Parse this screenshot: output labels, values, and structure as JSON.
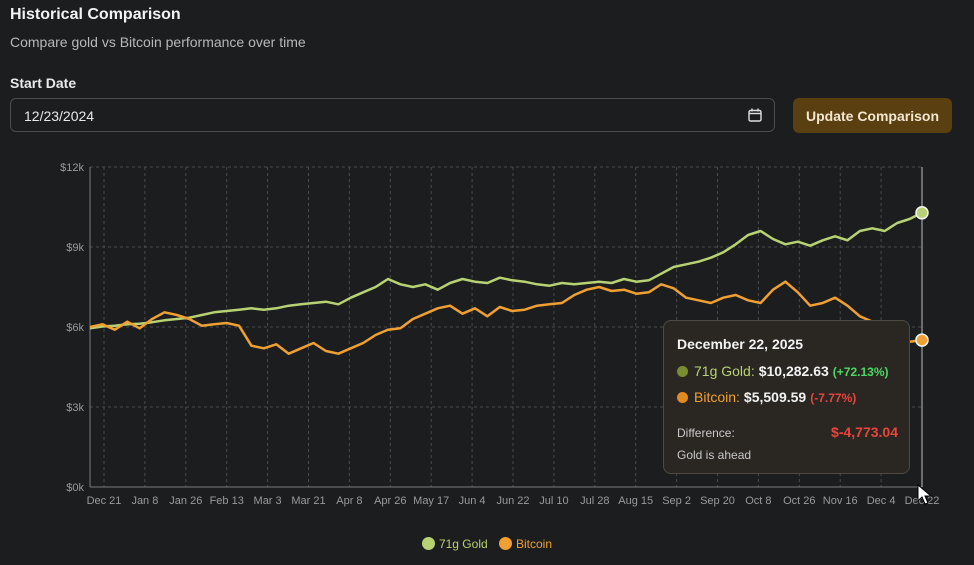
{
  "header": {
    "title": "Historical Comparison",
    "subtitle": "Compare gold vs Bitcoin performance over time"
  },
  "form": {
    "start_label": "Start Date",
    "start_value": "12/23/2024",
    "update_label": "Update Comparison"
  },
  "colors": {
    "gold": "#b8d273",
    "bitcoin": "#f0a032",
    "gold_dot_tooltip": "#7a8c30",
    "bitcoin_dot_tooltip": "#e08a20",
    "positive": "#4cd964",
    "negative": "#e8453c"
  },
  "tooltip": {
    "date": "December 22, 2025",
    "gold_label": "71g Gold:",
    "gold_value": "$10,282.63",
    "gold_change": "(+72.13%)",
    "btc_label": "Bitcoin:",
    "btc_value": "$5,509.59",
    "btc_change": "(-7.77%)",
    "diff_label": "Difference:",
    "diff_value": "$-4,773.04",
    "note": "Gold is ahead"
  },
  "chart_data": {
    "type": "line",
    "title": "",
    "xlabel": "",
    "ylabel": "",
    "ylim": [
      0,
      12000
    ],
    "yticks": [
      0,
      3000,
      6000,
      9000,
      12000
    ],
    "ytick_labels": [
      "$0k",
      "$3k",
      "$6k",
      "$9k",
      "$12k"
    ],
    "xticks": [
      "Dec 21",
      "Jan 8",
      "Jan 26",
      "Feb 13",
      "Mar 3",
      "Mar 21",
      "Apr 8",
      "Apr 26",
      "May 17",
      "Jun 4",
      "Jun 22",
      "Jul 10",
      "Jul 28",
      "Aug 15",
      "Sep 2",
      "Sep 20",
      "Oct 8",
      "Oct 26",
      "Nov 16",
      "Dec 4",
      "Dec 22"
    ],
    "grid": true,
    "legend": "bottom-center",
    "series": [
      {
        "name": "71g Gold",
        "color": "#b8d273",
        "values": [
          5950,
          6020,
          6050,
          6100,
          6120,
          6180,
          6250,
          6300,
          6350,
          6450,
          6550,
          6600,
          6650,
          6700,
          6650,
          6700,
          6800,
          6850,
          6900,
          6950,
          6850,
          7100,
          7300,
          7500,
          7800,
          7600,
          7500,
          7600,
          7400,
          7650,
          7800,
          7700,
          7650,
          7850,
          7750,
          7700,
          7600,
          7550,
          7650,
          7600,
          7650,
          7700,
          7650,
          7800,
          7700,
          7750,
          8000,
          8250,
          8350,
          8450,
          8600,
          8800,
          9100,
          9450,
          9600,
          9300,
          9100,
          9200,
          9050,
          9250,
          9400,
          9250,
          9600,
          9700,
          9600,
          9900,
          10050,
          10282.63
        ]
      },
      {
        "name": "Bitcoin",
        "color": "#f0a032",
        "values": [
          6000,
          6100,
          5900,
          6200,
          5950,
          6300,
          6550,
          6450,
          6300,
          6050,
          6100,
          6150,
          6050,
          5300,
          5200,
          5350,
          5000,
          5200,
          5400,
          5100,
          5000,
          5200,
          5400,
          5700,
          5900,
          5950,
          6300,
          6500,
          6700,
          6800,
          6500,
          6700,
          6400,
          6750,
          6600,
          6650,
          6800,
          6850,
          6900,
          7200,
          7400,
          7500,
          7350,
          7400,
          7250,
          7300,
          7600,
          7450,
          7100,
          7000,
          6900,
          7100,
          7200,
          7000,
          6900,
          7400,
          7700,
          7300,
          6800,
          6900,
          7100,
          6800,
          6400,
          6200,
          5800,
          5600,
          5450,
          5509.59
        ]
      }
    ]
  }
}
